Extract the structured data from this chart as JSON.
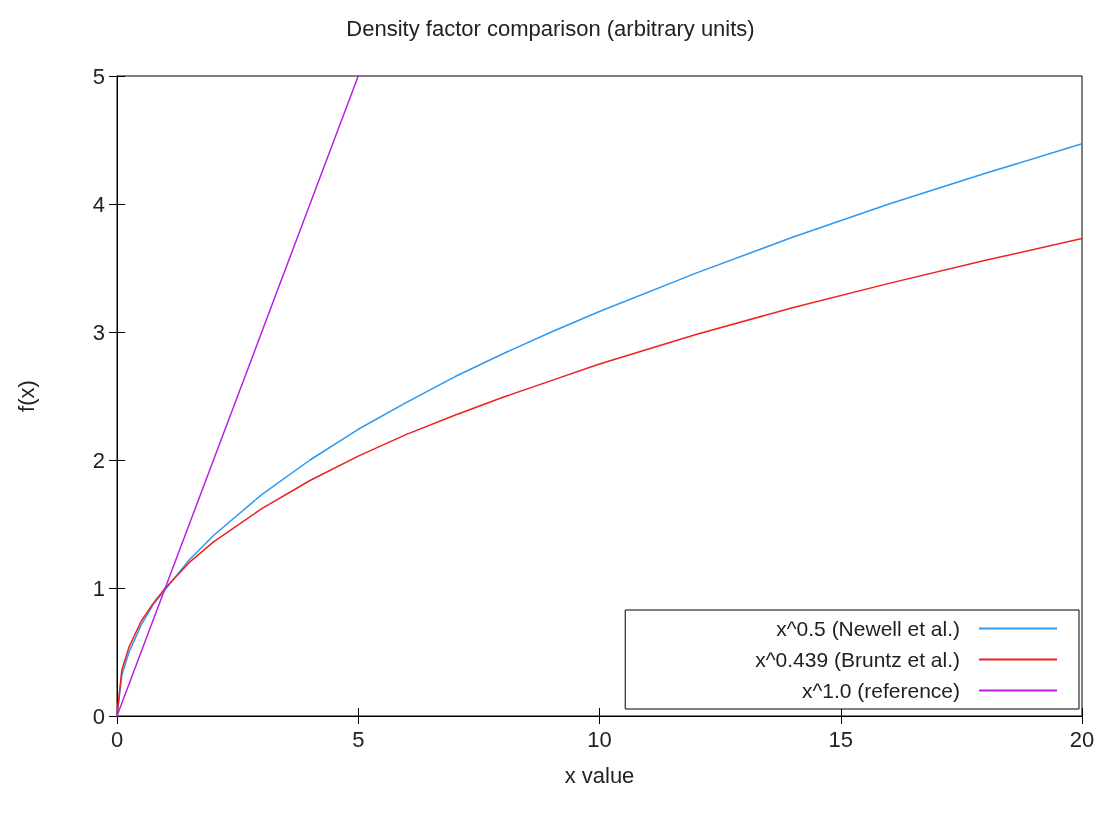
{
  "chart_data": {
    "type": "line",
    "title": "Density factor comparison (arbitrary units)",
    "xlabel": "x value",
    "ylabel": "f(x)",
    "xlim": [
      0,
      20
    ],
    "xticks": [
      0,
      5,
      10,
      15,
      20
    ],
    "ylim": [
      0,
      5
    ],
    "yticks": [
      0,
      1,
      2,
      3,
      4,
      5
    ],
    "grid": false,
    "legend": "bottom right",
    "marker": "none",
    "line_style": "solid",
    "series": [
      {
        "name": "x^0.5 (Newell et al.)",
        "color": "#2f98f0",
        "x": [
          0,
          0.1,
          0.25,
          0.5,
          0.75,
          1.5,
          2,
          3,
          4,
          5,
          6,
          7,
          8,
          9,
          10,
          12,
          14,
          16,
          18,
          20
        ],
        "values": [
          0,
          0.32,
          0.5,
          0.71,
          0.87,
          1.22,
          1.41,
          1.73,
          2,
          2.24,
          2.45,
          2.65,
          2.83,
          3,
          3.16,
          3.46,
          3.74,
          4,
          4.24,
          4.47
        ]
      },
      {
        "name": "x^0.439 (Bruntz et al.)",
        "color": "#f02020",
        "x": [
          0,
          0.1,
          0.25,
          0.5,
          0.75,
          1,
          1.5,
          2,
          3,
          4,
          5,
          6,
          7,
          8,
          9,
          10,
          12,
          14,
          16,
          18,
          20
        ],
        "values": [
          0,
          0.36,
          0.54,
          0.74,
          0.88,
          1,
          1.2,
          1.36,
          1.62,
          1.84,
          2.03,
          2.2,
          2.35,
          2.49,
          2.62,
          2.75,
          2.98,
          3.19,
          3.38,
          3.56,
          3.73
        ]
      },
      {
        "name": "x^1.0 (reference)",
        "color": "#b820e8",
        "x": [
          0,
          1,
          2,
          3,
          4,
          5
        ],
        "values": [
          0,
          1,
          2,
          3,
          4,
          5
        ]
      }
    ]
  }
}
